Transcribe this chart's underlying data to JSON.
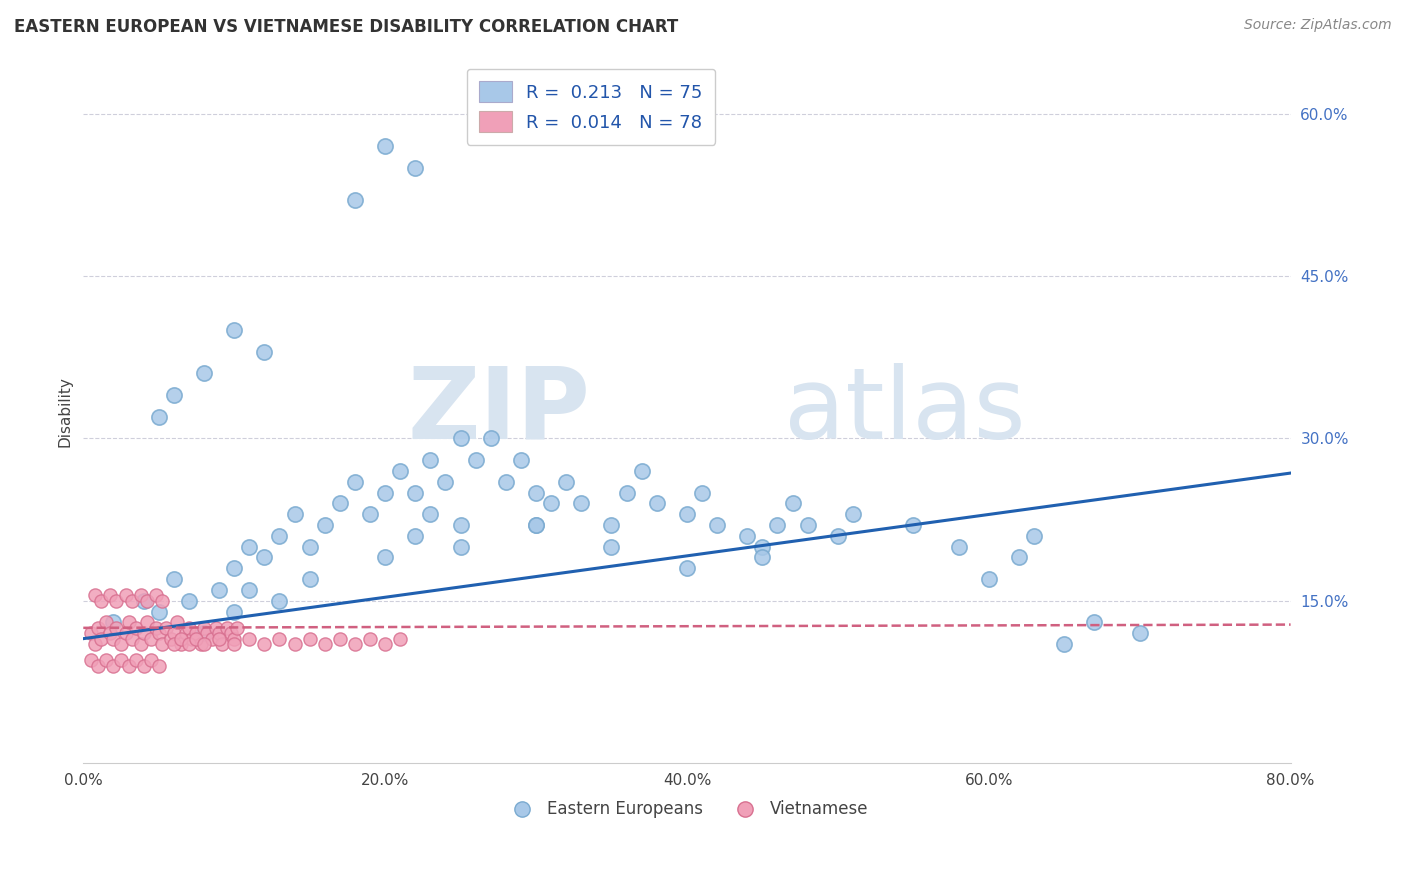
{
  "title": "EASTERN EUROPEAN VS VIETNAMESE DISABILITY CORRELATION CHART",
  "source": "Source: ZipAtlas.com",
  "xlabel_ticks": [
    "0.0%",
    "20.0%",
    "40.0%",
    "60.0%",
    "80.0%"
  ],
  "ylabel_ticks": [
    "15.0%",
    "30.0%",
    "45.0%",
    "60.0%"
  ],
  "ylabel_label": "Disability",
  "legend_r1": "R =  0.213   N = 75",
  "legend_r2": "R =  0.014   N = 78",
  "blue_color": "#A8C8E8",
  "blue_edge_color": "#7AAAD0",
  "pink_color": "#F0A0B8",
  "pink_edge_color": "#D87090",
  "blue_line_color": "#2060B0",
  "pink_line_color": "#D06080",
  "watermark_zip": "ZIP",
  "watermark_atlas": "atlas",
  "xlim": [
    0.0,
    0.8
  ],
  "ylim": [
    0.0,
    0.65
  ],
  "blue_trend_x": [
    0.0,
    0.8
  ],
  "blue_trend_y": [
    0.115,
    0.268
  ],
  "pink_trend_x": [
    0.0,
    0.8
  ],
  "pink_trend_y": [
    0.125,
    0.128
  ],
  "blue_scatter_x": [
    0.02,
    0.04,
    0.05,
    0.06,
    0.07,
    0.08,
    0.09,
    0.1,
    0.1,
    0.11,
    0.11,
    0.12,
    0.13,
    0.13,
    0.14,
    0.15,
    0.16,
    0.17,
    0.18,
    0.19,
    0.2,
    0.2,
    0.21,
    0.22,
    0.22,
    0.23,
    0.23,
    0.24,
    0.25,
    0.25,
    0.26,
    0.27,
    0.28,
    0.29,
    0.3,
    0.3,
    0.31,
    0.32,
    0.33,
    0.35,
    0.36,
    0.37,
    0.38,
    0.4,
    0.41,
    0.42,
    0.44,
    0.45,
    0.46,
    0.47,
    0.48,
    0.5,
    0.51,
    0.55,
    0.58,
    0.6,
    0.62,
    0.63,
    0.65,
    0.67,
    0.7,
    0.18,
    0.2,
    0.22,
    0.1,
    0.12,
    0.08,
    0.06,
    0.05,
    0.15,
    0.25,
    0.3,
    0.35,
    0.4,
    0.45
  ],
  "blue_scatter_y": [
    0.13,
    0.15,
    0.14,
    0.17,
    0.15,
    0.12,
    0.16,
    0.18,
    0.14,
    0.2,
    0.16,
    0.19,
    0.21,
    0.15,
    0.23,
    0.2,
    0.22,
    0.24,
    0.26,
    0.23,
    0.25,
    0.19,
    0.27,
    0.25,
    0.21,
    0.28,
    0.23,
    0.26,
    0.3,
    0.22,
    0.28,
    0.3,
    0.26,
    0.28,
    0.22,
    0.25,
    0.24,
    0.26,
    0.24,
    0.22,
    0.25,
    0.27,
    0.24,
    0.23,
    0.25,
    0.22,
    0.21,
    0.2,
    0.22,
    0.24,
    0.22,
    0.21,
    0.23,
    0.22,
    0.2,
    0.17,
    0.19,
    0.21,
    0.11,
    0.13,
    0.12,
    0.52,
    0.57,
    0.55,
    0.4,
    0.38,
    0.36,
    0.34,
    0.32,
    0.17,
    0.2,
    0.22,
    0.2,
    0.18,
    0.19
  ],
  "pink_scatter_x": [
    0.005,
    0.008,
    0.01,
    0.012,
    0.015,
    0.018,
    0.02,
    0.022,
    0.025,
    0.028,
    0.03,
    0.032,
    0.035,
    0.038,
    0.04,
    0.042,
    0.045,
    0.048,
    0.05,
    0.052,
    0.055,
    0.058,
    0.06,
    0.062,
    0.065,
    0.068,
    0.07,
    0.072,
    0.075,
    0.078,
    0.08,
    0.082,
    0.085,
    0.088,
    0.09,
    0.092,
    0.095,
    0.098,
    0.1,
    0.102,
    0.005,
    0.01,
    0.015,
    0.02,
    0.025,
    0.03,
    0.035,
    0.04,
    0.045,
    0.05,
    0.008,
    0.012,
    0.018,
    0.022,
    0.028,
    0.032,
    0.038,
    0.042,
    0.048,
    0.052,
    0.06,
    0.065,
    0.07,
    0.075,
    0.08,
    0.09,
    0.1,
    0.11,
    0.12,
    0.13,
    0.14,
    0.15,
    0.16,
    0.17,
    0.18,
    0.19,
    0.2,
    0.21
  ],
  "pink_scatter_y": [
    0.12,
    0.11,
    0.125,
    0.115,
    0.13,
    0.12,
    0.115,
    0.125,
    0.11,
    0.12,
    0.13,
    0.115,
    0.125,
    0.11,
    0.12,
    0.13,
    0.115,
    0.125,
    0.12,
    0.11,
    0.125,
    0.115,
    0.12,
    0.13,
    0.11,
    0.12,
    0.125,
    0.115,
    0.12,
    0.11,
    0.125,
    0.12,
    0.115,
    0.125,
    0.12,
    0.11,
    0.125,
    0.12,
    0.115,
    0.125,
    0.095,
    0.09,
    0.095,
    0.09,
    0.095,
    0.09,
    0.095,
    0.09,
    0.095,
    0.09,
    0.155,
    0.15,
    0.155,
    0.15,
    0.155,
    0.15,
    0.155,
    0.15,
    0.155,
    0.15,
    0.11,
    0.115,
    0.11,
    0.115,
    0.11,
    0.115,
    0.11,
    0.115,
    0.11,
    0.115,
    0.11,
    0.115,
    0.11,
    0.115,
    0.11,
    0.115,
    0.11,
    0.115
  ]
}
